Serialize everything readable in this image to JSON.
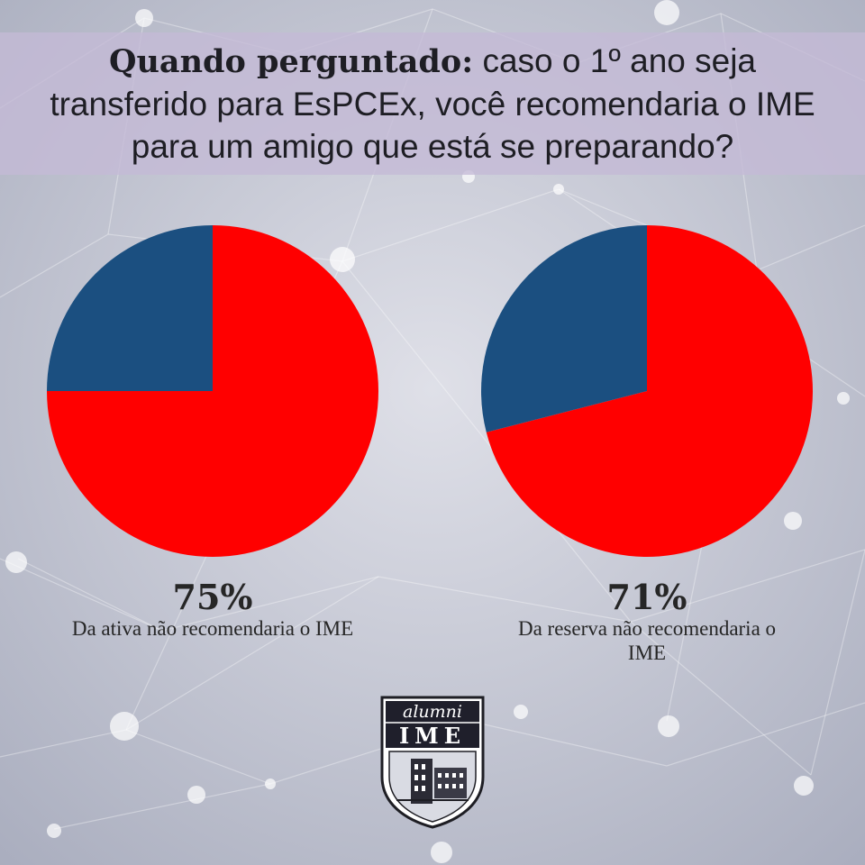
{
  "header": {
    "question_lead": "Quando perguntado:",
    "question_text": "caso o 1º ano seja transferido para EsPCEx, você recomendaria o IME para um amigo que está se preparando?"
  },
  "colors": {
    "not_recommend": "#ff0000",
    "recommend": "#1b4f80",
    "background": "#c3c6d3"
  },
  "chart_data": [
    {
      "type": "pie",
      "label": "75%",
      "caption": "Da ativa não recomendaria o IME",
      "slices": [
        {
          "value": 75,
          "color": "#ff0000"
        },
        {
          "value": 25,
          "color": "#1b4f80"
        }
      ]
    },
    {
      "type": "pie",
      "label": "71%",
      "caption": "Da reserva não recomendaria o IME",
      "slices": [
        {
          "value": 71,
          "color": "#ff0000"
        },
        {
          "value": 29,
          "color": "#1b4f80"
        }
      ]
    }
  ],
  "logo": {
    "top_text": "alumni",
    "main_text": "IME",
    "icon": "building-crest-icon"
  }
}
